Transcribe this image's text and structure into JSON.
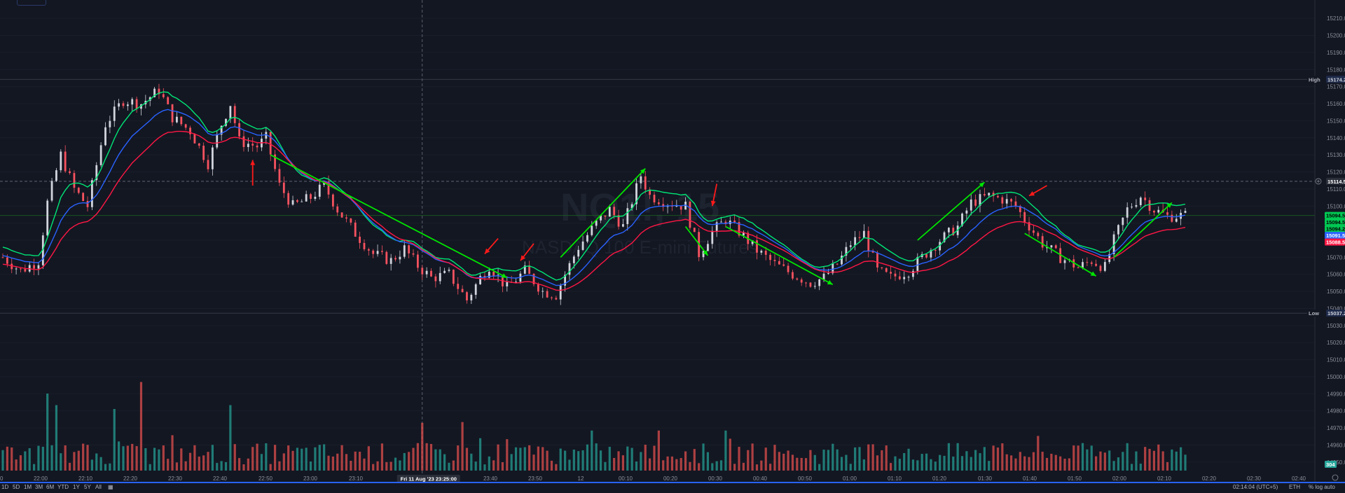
{
  "colors": {
    "background": "#131722",
    "up": "#d1d4dc",
    "down": "#f7525f",
    "vol_up": "#26a69a",
    "vol_down": "#ef5350",
    "ema_fast": "#00e676",
    "ema_mid": "#2962ff",
    "ema_slow": "#ff1744",
    "arrow_green": "#00e600",
    "arrow_red": "#ff1a1a",
    "axis_text": "#8b8f9a"
  },
  "watermark": {
    "symbol": "NQ1!, 15",
    "name": "NASDAQ 100 E-mini Futures"
  },
  "price_axis": {
    "ticks": [
      "15210.00",
      "15200.00",
      "15190.00",
      "15180.00",
      "15170.00",
      "15160.00",
      "15150.00",
      "15140.00",
      "15130.00",
      "15120.00",
      "15110.00",
      "15100.00",
      "15090.00",
      "15080.00",
      "15070.00",
      "15060.00",
      "15050.00",
      "15040.00",
      "15030.00",
      "15020.00",
      "15010.00",
      "15000.00",
      "14990.00",
      "14980.00",
      "14970.00",
      "14960.00",
      "14950.00"
    ],
    "high_label": "High",
    "high_value": "15174.25",
    "low_label": "Low",
    "low_value": "15037.25",
    "crosshair_value": "15114.50",
    "last_price_tags": [
      "15094.50",
      "15094.50",
      "15094.25",
      "15091.50",
      "15088.50"
    ],
    "volume_tag": "304"
  },
  "time_axis": {
    "ticks": [
      "0",
      "22:00",
      "22:10",
      "22:20",
      "22:30",
      "22:40",
      "22:50",
      "23:00",
      "23:10",
      "23:40",
      "23:50",
      "12",
      "00:10",
      "00:20",
      "00:30",
      "00:40",
      "00:50",
      "01:00",
      "01:10",
      "01:20",
      "01:30",
      "01:40",
      "01:50",
      "02:00",
      "02:10",
      "02:20",
      "02:30",
      "02:40"
    ],
    "crosshair_label": "Fri 11 Aug '23   23:25:00"
  },
  "bottom_bar": {
    "ranges": [
      "1D",
      "5D",
      "1M",
      "3M",
      "6M",
      "YTD",
      "1Y",
      "5Y",
      "All"
    ],
    "clock": "02:14:04 (UTC+5)",
    "session": "ETH",
    "percent_label": "% log auto"
  },
  "chart_data": {
    "type": "candlestick",
    "interval_min": 1,
    "start": "21:51",
    "end": "02:16",
    "y_range": [
      14945,
      15215
    ],
    "price_path": [
      {
        "t": "21:51",
        "price": 15070
      },
      {
        "t": "21:55",
        "price": 15062
      },
      {
        "t": "21:59",
        "price": 15068
      },
      {
        "t": "22:01",
        "price": 15102
      },
      {
        "t": "22:04",
        "price": 15130
      },
      {
        "t": "22:07",
        "price": 15110
      },
      {
        "t": "22:10",
        "price": 15100
      },
      {
        "t": "22:14",
        "price": 15148
      },
      {
        "t": "22:18",
        "price": 15162
      },
      {
        "t": "22:22",
        "price": 15160
      },
      {
        "t": "22:26",
        "price": 15168
      },
      {
        "t": "22:29",
        "price": 15152
      },
      {
        "t": "22:33",
        "price": 15144
      },
      {
        "t": "22:37",
        "price": 15125
      },
      {
        "t": "22:40",
        "price": 15148
      },
      {
        "t": "22:42",
        "price": 15160
      },
      {
        "t": "22:44",
        "price": 15138
      },
      {
        "t": "22:48",
        "price": 15135
      },
      {
        "t": "22:50",
        "price": 15140
      },
      {
        "t": "22:53",
        "price": 15112
      },
      {
        "t": "22:56",
        "price": 15100
      },
      {
        "t": "23:00",
        "price": 15105
      },
      {
        "t": "23:03",
        "price": 15112
      },
      {
        "t": "23:06",
        "price": 15098
      },
      {
        "t": "23:10",
        "price": 15084
      },
      {
        "t": "23:14",
        "price": 15072
      },
      {
        "t": "23:18",
        "price": 15068
      },
      {
        "t": "23:21",
        "price": 15075
      },
      {
        "t": "23:24",
        "price": 15065
      },
      {
        "t": "23:27",
        "price": 15058
      },
      {
        "t": "23:31",
        "price": 15060
      },
      {
        "t": "23:35",
        "price": 15045
      },
      {
        "t": "23:38",
        "price": 15058
      },
      {
        "t": "23:40",
        "price": 15065
      },
      {
        "t": "23:44",
        "price": 15052
      },
      {
        "t": "23:48",
        "price": 15062
      },
      {
        "t": "23:52",
        "price": 15050
      },
      {
        "t": "23:55",
        "price": 15048
      },
      {
        "t": "23:57",
        "price": 15060
      },
      {
        "t": "00:00",
        "price": 15076
      },
      {
        "t": "00:04",
        "price": 15090
      },
      {
        "t": "00:07",
        "price": 15098
      },
      {
        "t": "00:10",
        "price": 15088
      },
      {
        "t": "00:14",
        "price": 15118
      },
      {
        "t": "00:16",
        "price": 15106
      },
      {
        "t": "00:20",
        "price": 15102
      },
      {
        "t": "00:24",
        "price": 15100
      },
      {
        "t": "00:27",
        "price": 15072
      },
      {
        "t": "00:30",
        "price": 15085
      },
      {
        "t": "00:33",
        "price": 15092
      },
      {
        "t": "00:36",
        "price": 15085
      },
      {
        "t": "00:40",
        "price": 15074
      },
      {
        "t": "00:44",
        "price": 15066
      },
      {
        "t": "00:48",
        "price": 15060
      },
      {
        "t": "00:52",
        "price": 15055
      },
      {
        "t": "00:55",
        "price": 15058
      },
      {
        "t": "00:58",
        "price": 15066
      },
      {
        "t": "01:01",
        "price": 15078
      },
      {
        "t": "01:04",
        "price": 15084
      },
      {
        "t": "01:07",
        "price": 15062
      },
      {
        "t": "01:10",
        "price": 15058
      },
      {
        "t": "01:14",
        "price": 15062
      },
      {
        "t": "01:17",
        "price": 15070
      },
      {
        "t": "01:21",
        "price": 15080
      },
      {
        "t": "01:25",
        "price": 15088
      },
      {
        "t": "01:28",
        "price": 15102
      },
      {
        "t": "01:32",
        "price": 15106
      },
      {
        "t": "01:35",
        "price": 15104
      },
      {
        "t": "01:38",
        "price": 15100
      },
      {
        "t": "01:40",
        "price": 15092
      },
      {
        "t": "01:44",
        "price": 15078
      },
      {
        "t": "01:48",
        "price": 15070
      },
      {
        "t": "01:52",
        "price": 15064
      },
      {
        "t": "01:55",
        "price": 15068
      },
      {
        "t": "01:58",
        "price": 15064
      },
      {
        "t": "02:00",
        "price": 15080
      },
      {
        "t": "02:03",
        "price": 15098
      },
      {
        "t": "02:06",
        "price": 15106
      },
      {
        "t": "02:09",
        "price": 15098
      },
      {
        "t": "02:12",
        "price": 15094
      },
      {
        "t": "02:16",
        "price": 15094.5
      }
    ],
    "volume_range": [
      0,
      160
    ],
    "volume_peaks": [
      {
        "t": "22:01",
        "vol": 100
      },
      {
        "t": "22:03",
        "vol": 85
      },
      {
        "t": "22:16",
        "vol": 80
      },
      {
        "t": "22:22",
        "vol": 115
      },
      {
        "t": "22:42",
        "vol": 85
      },
      {
        "t": "23:25",
        "vol": 62
      },
      {
        "t": "23:34",
        "vol": 63
      },
      {
        "t": "00:03",
        "vol": 52
      },
      {
        "t": "00:18",
        "vol": 52
      }
    ],
    "emas": [
      {
        "name": "EMA fast",
        "color": "#00e676",
        "offset": 6
      },
      {
        "name": "EMA mid",
        "color": "#2962ff",
        "offset": 1
      },
      {
        "name": "EMA slow",
        "color": "#ff1744",
        "offset": -4
      }
    ],
    "annotations": {
      "green_arrows": [
        {
          "from": [
            "22:51",
            15130
          ],
          "to": [
            "23:44",
            15058
          ]
        },
        {
          "from": [
            "23:56",
            15070
          ],
          "to": [
            "00:15",
            15122
          ]
        },
        {
          "from": [
            "00:24",
            15088
          ],
          "to": [
            "00:29",
            15071
          ]
        },
        {
          "from": [
            "00:33",
            15088
          ],
          "to": [
            "00:57",
            15054
          ]
        },
        {
          "from": [
            "01:16",
            15080
          ],
          "to": [
            "01:31",
            15114
          ]
        },
        {
          "from": [
            "01:40",
            15084
          ],
          "to": [
            "01:56",
            15059
          ]
        },
        {
          "from": [
            "02:00",
            15070
          ],
          "to": [
            "02:13",
            15102
          ]
        }
      ],
      "red_arrows": [
        {
          "from": [
            "22:47",
            15112
          ],
          "to": [
            "22:47",
            15127
          ]
        },
        {
          "from": [
            "23:42",
            15081
          ],
          "to": [
            "23:39",
            15072
          ]
        },
        {
          "from": [
            "23:50",
            15078
          ],
          "to": [
            "23:47",
            15068
          ]
        },
        {
          "from": [
            "00:31",
            15113
          ],
          "to": [
            "00:30",
            15100
          ]
        },
        {
          "from": [
            "01:45",
            15112
          ],
          "to": [
            "01:41",
            15106
          ]
        }
      ]
    },
    "high": 15174.25,
    "low": 15037.25,
    "crosshair": {
      "time": "23:25",
      "price": 15114.5
    }
  }
}
